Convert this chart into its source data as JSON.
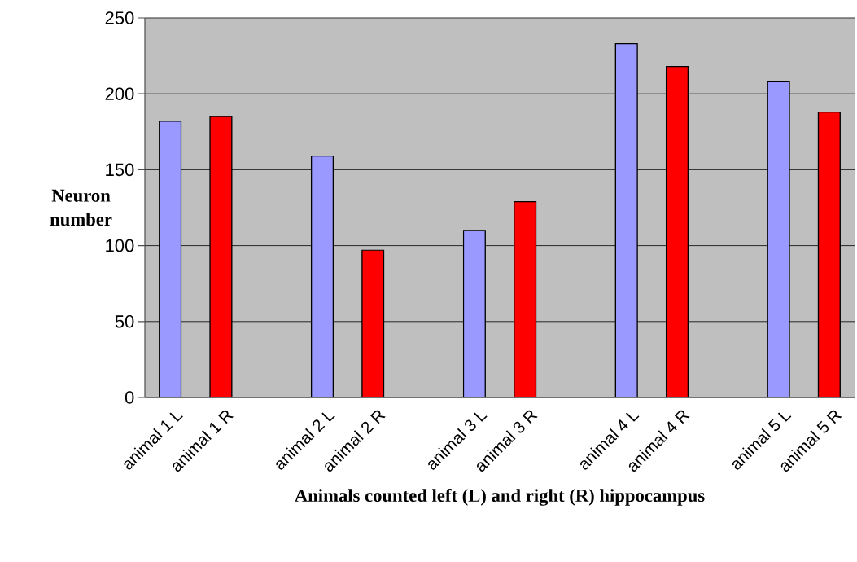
{
  "chart_data": {
    "type": "bar",
    "xlabel": "Animals counted left (L) and right (R) hippocampus",
    "ylabel": "Neuron number",
    "categories": [
      "animal 1 L",
      "animal 1 R",
      null,
      "animal 2 L",
      "animal 2 R",
      null,
      "animal 3 L",
      "animal 3 R",
      null,
      "animal 4 L",
      "animal 4 R",
      null,
      "animal 5 L",
      "animal 5 R"
    ],
    "values": [
      182,
      185,
      null,
      159,
      97,
      null,
      110,
      129,
      null,
      233,
      218,
      null,
      208,
      188
    ],
    "colors": [
      "#9999ff",
      "#ff0000",
      null,
      "#9999ff",
      "#ff0000",
      null,
      "#9999ff",
      "#ff0000",
      null,
      "#9999ff",
      "#ff0000",
      null,
      "#9999ff",
      "#ff0000"
    ],
    "ylim": [
      0,
      250
    ],
    "yticks": [
      0,
      50,
      100,
      150,
      200,
      250
    ],
    "grid": "y"
  }
}
